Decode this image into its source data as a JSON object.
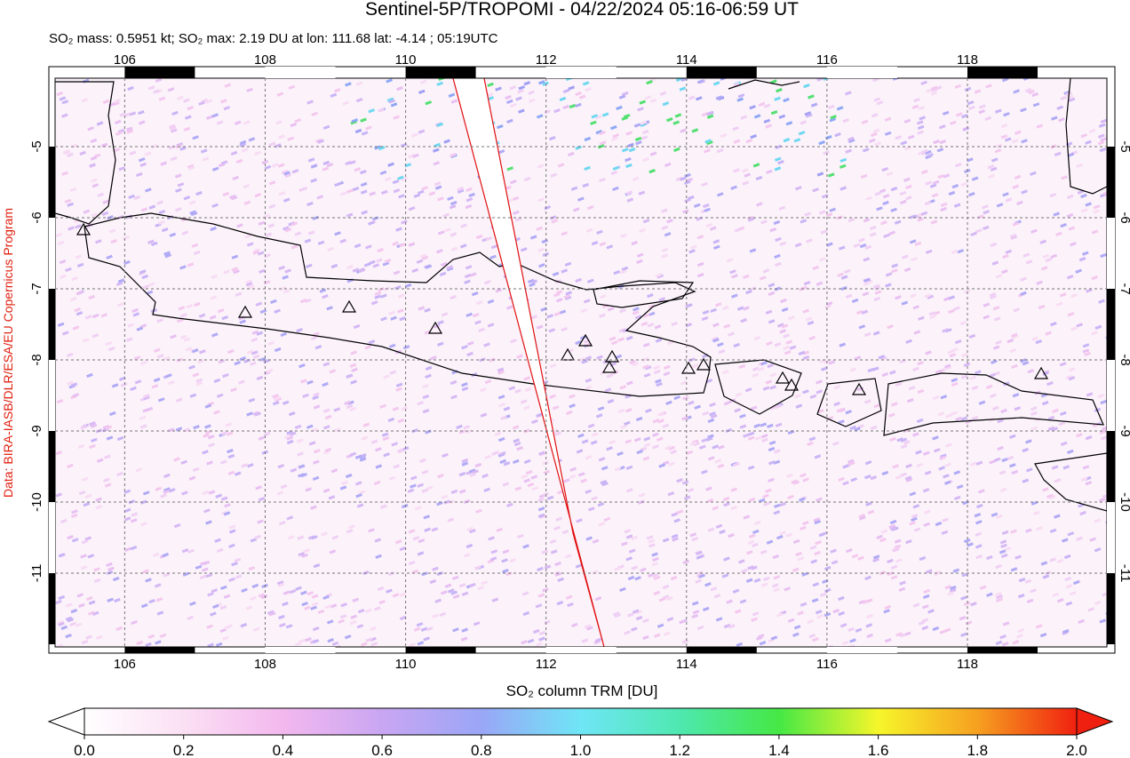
{
  "map": {
    "title": "Sentinel-5P/TROPOMI - 04/22/2024 05:16-06:59 UT",
    "subtitle": "SO₂ mass: 0.5951 kt; SO₂ max: 2.19 DU at lon: 111.68 lat: -4.14 ; 05:19UTC",
    "credit": "Data: BIRA-IASB/DLR/ESA/EU Copernicus Program",
    "xlim": [
      104.92,
      120.1
    ],
    "ylim": [
      -3.875,
      -12.125
    ],
    "xticks": [
      106,
      108,
      110,
      112,
      114,
      116,
      118
    ],
    "yticks": [
      -5,
      -6,
      -7,
      -8,
      -9,
      -10,
      -11
    ],
    "colorbar": {
      "label": "SO₂ column TRM [DU]",
      "lim": [
        0,
        2
      ],
      "ticks": [
        {
          "value": 0,
          "label": "0.0"
        },
        {
          "value": 0.2,
          "label": "0.2"
        },
        {
          "value": 0.4,
          "label": "0.4"
        },
        {
          "value": 0.6,
          "label": "0.6"
        },
        {
          "value": 0.8,
          "label": "0.8"
        },
        {
          "value": 1,
          "label": "1.0"
        },
        {
          "value": 1.2,
          "label": "1.2"
        },
        {
          "value": 1.4,
          "label": "1.4"
        },
        {
          "value": 1.6,
          "label": "1.6"
        },
        {
          "value": 1.8,
          "label": "1.8"
        },
        {
          "value": 2,
          "label": "2.0"
        }
      ]
    }
  }
}
